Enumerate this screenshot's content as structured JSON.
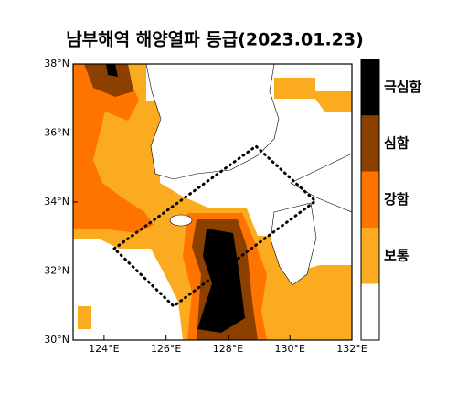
{
  "title": "남부해역 해양열파 등급(2023.01.23)",
  "x_axis": {
    "ticks": [
      {
        "value": 124,
        "label": "124°E"
      },
      {
        "value": 126,
        "label": "126°E"
      },
      {
        "value": 128,
        "label": "128°E"
      },
      {
        "value": 130,
        "label": "130°E"
      },
      {
        "value": 132,
        "label": "132°E"
      }
    ],
    "range": [
      123,
      132
    ]
  },
  "y_axis": {
    "ticks": [
      {
        "value": 30,
        "label": "30°N"
      },
      {
        "value": 32,
        "label": "32°N"
      },
      {
        "value": 34,
        "label": "34°N"
      },
      {
        "value": 36,
        "label": "36°N"
      },
      {
        "value": 38,
        "label": "38°N"
      }
    ],
    "range": [
      30,
      38
    ]
  },
  "legend": {
    "items": [
      {
        "label": "극심함",
        "color": "#000000"
      },
      {
        "label": "심함",
        "color": "#8b4000"
      },
      {
        "label": "강함",
        "color": "#ff7400"
      },
      {
        "label": "보통",
        "color": "#fbab1f"
      }
    ],
    "none_color": "#ffffff"
  }
}
